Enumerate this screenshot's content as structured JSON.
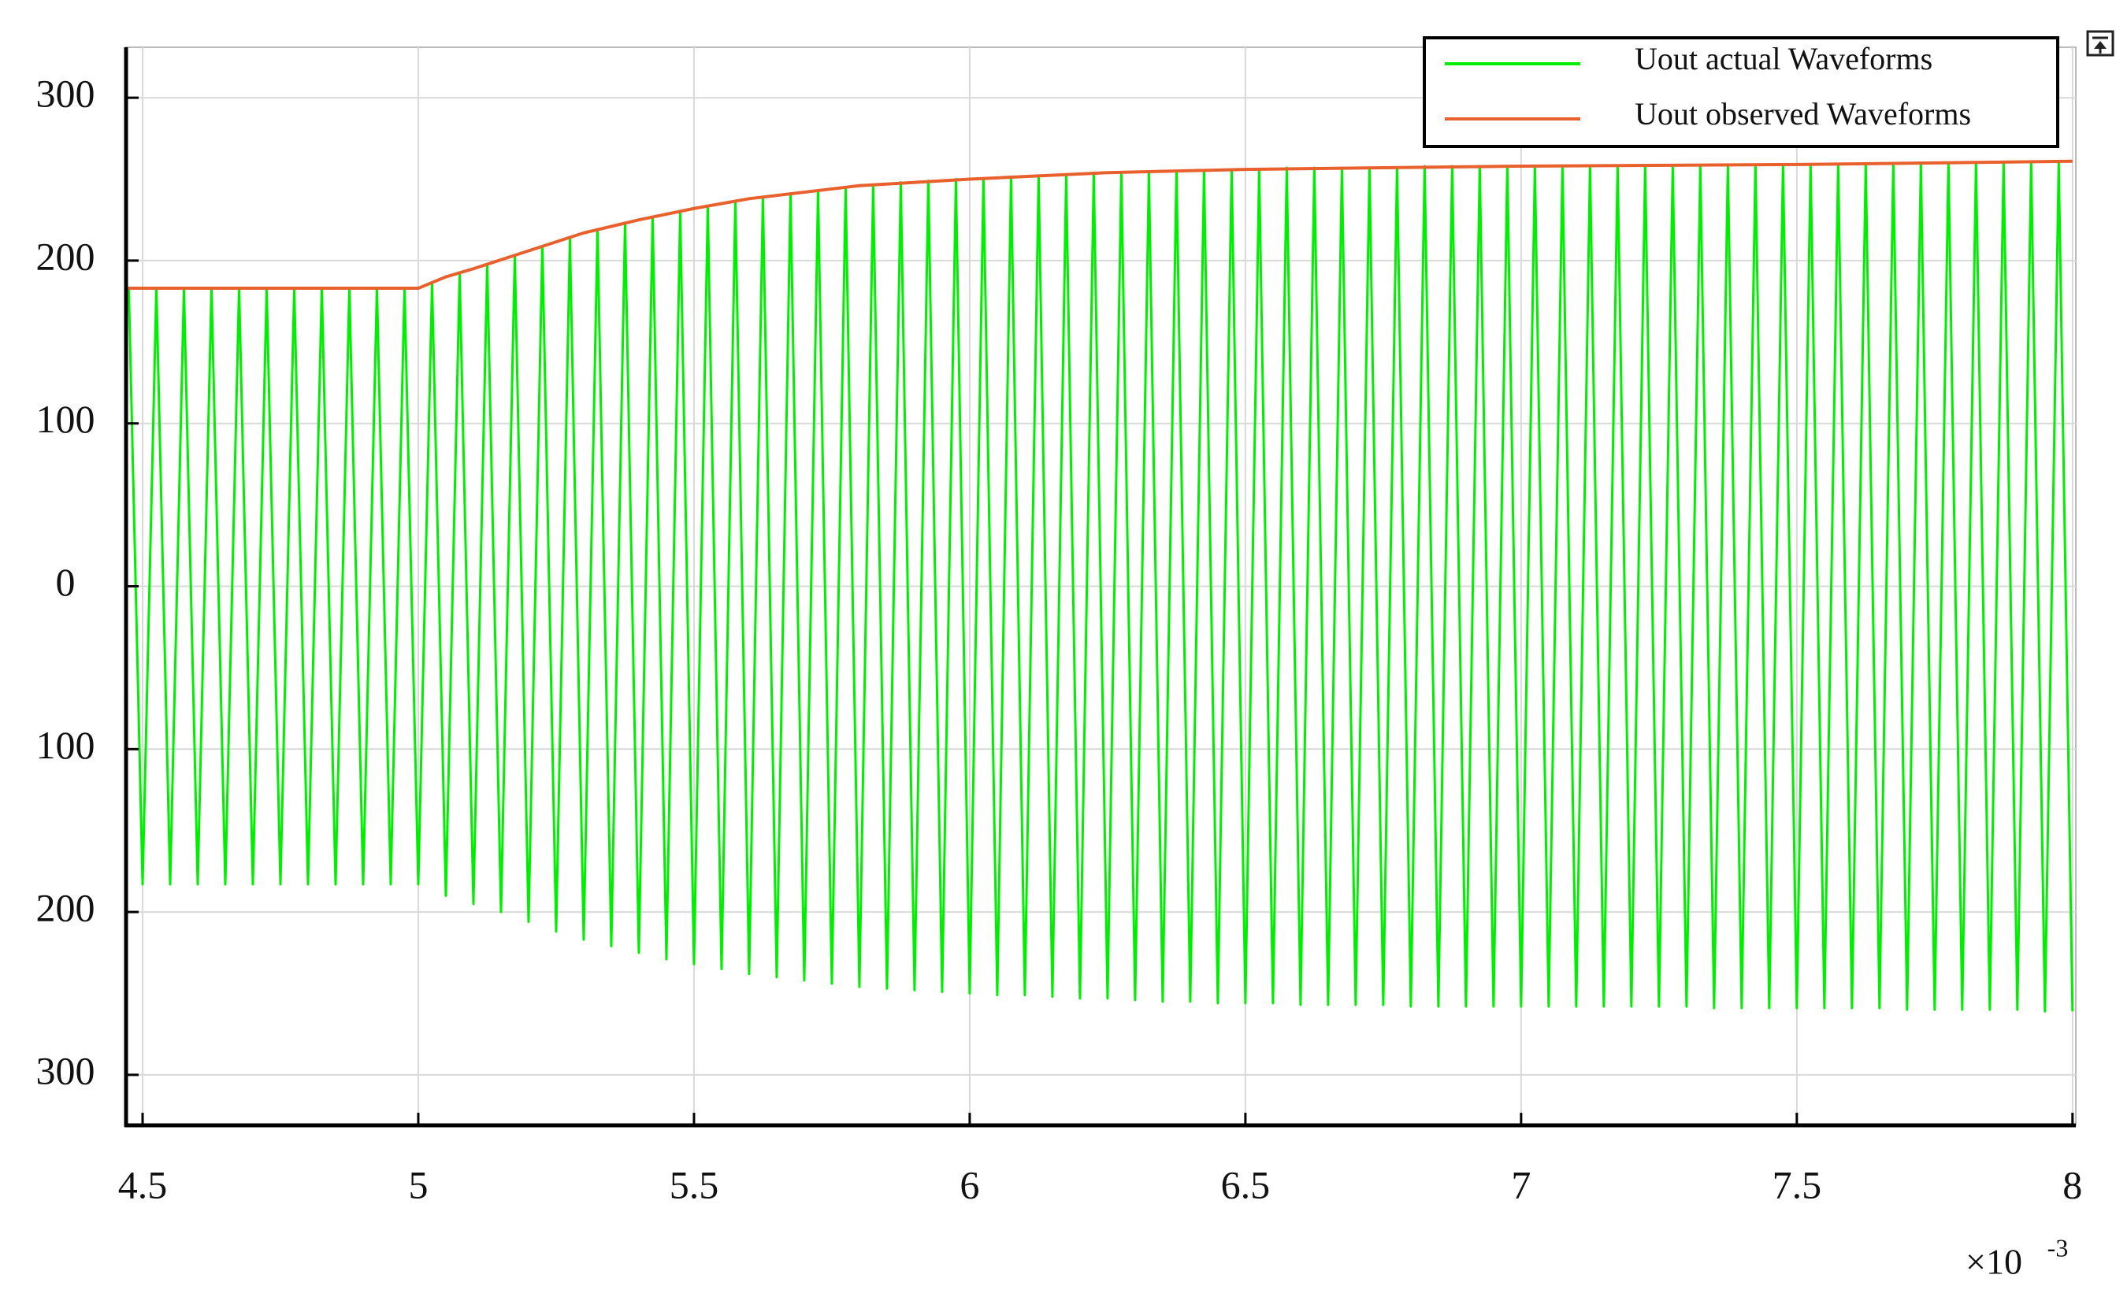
{
  "chart_data": {
    "type": "line",
    "xlim": [
      4.47,
      8.006
    ],
    "xticks": [
      4.5,
      5,
      5.5,
      6,
      6.5,
      7,
      7.5,
      8
    ],
    "ylim": [
      -331,
      331
    ],
    "yticks": [
      300,
      200,
      100,
      0,
      {
        "value": -100,
        "label": "100"
      },
      {
        "value": -200,
        "label": "200"
      },
      {
        "value": -300,
        "label": "300"
      }
    ],
    "x_multiplier": "×10",
    "x_exponent": "-3",
    "grid": true,
    "legend": "upper right",
    "series": [
      {
        "name": "Uout actual Waveforms",
        "color": "#00ee00",
        "x": [
          4.475,
          4.5,
          4.525,
          4.55,
          4.575,
          4.6,
          4.625,
          4.65,
          4.675,
          4.7,
          4.725,
          4.75,
          4.775,
          4.8,
          4.825,
          4.85,
          4.875,
          4.9,
          4.925,
          4.95,
          4.975,
          5,
          5.025,
          5.05,
          5.075,
          5.1,
          5.125,
          5.15,
          5.175,
          5.2,
          5.225,
          5.25,
          5.275,
          5.3,
          5.325,
          5.35,
          5.375,
          5.4,
          5.425,
          5.45,
          5.475,
          5.5,
          5.525,
          5.55,
          5.575,
          5.6,
          5.625,
          5.65,
          5.675,
          5.7,
          5.725,
          5.75,
          5.775,
          5.8,
          5.825,
          5.85,
          5.875,
          5.9,
          5.925,
          5.95,
          5.975,
          6,
          6.025,
          6.05,
          6.075,
          6.1,
          6.125,
          6.15,
          6.175,
          6.2,
          6.225,
          6.25,
          6.275,
          6.3,
          6.325,
          6.35,
          6.375,
          6.4,
          6.425,
          6.45,
          6.475,
          6.5,
          6.525,
          6.55,
          6.575,
          6.6,
          6.625,
          6.65,
          6.675,
          6.7,
          6.725,
          6.75,
          6.775,
          6.8,
          6.825,
          6.85,
          6.875,
          6.9,
          6.925,
          6.95,
          6.975,
          7,
          7.025,
          7.05,
          7.075,
          7.1,
          7.125,
          7.15,
          7.175,
          7.2,
          7.225,
          7.25,
          7.275,
          7.3,
          7.325,
          7.35,
          7.375,
          7.4,
          7.425,
          7.45,
          7.475,
          7.5,
          7.525,
          7.55,
          7.575,
          7.6,
          7.625,
          7.65,
          7.675,
          7.7,
          7.725,
          7.75,
          7.775,
          7.8,
          7.825,
          7.85,
          7.875,
          7.9,
          7.925,
          7.95,
          7.975,
          8
        ],
        "values": [
          183,
          -183,
          183,
          -183,
          183,
          -183,
          183,
          -183,
          183,
          -183,
          183,
          -183,
          183,
          -183,
          183,
          -183,
          183,
          -183,
          183,
          -183,
          183,
          -183,
          186,
          -190,
          192,
          -195,
          198,
          -200,
          203,
          -206,
          209,
          -212,
          214,
          -217,
          219,
          -221,
          223,
          -225,
          227,
          -229,
          230,
          -232,
          233,
          -235,
          236,
          -238,
          239,
          -240,
          241,
          -242,
          243,
          -244,
          245,
          -246,
          246,
          -247,
          248,
          -248,
          249,
          -249,
          250,
          -250,
          250,
          -251,
          251,
          -251,
          252,
          -252,
          252,
          -253,
          253,
          -253,
          254,
          -254,
          254,
          -255,
          255,
          -255,
          255,
          -256,
          256,
          -256,
          256,
          -256,
          257,
          -257,
          257,
          -257,
          257,
          -257,
          257,
          -257,
          257,
          -258,
          258,
          -258,
          258,
          -258,
          258,
          -258,
          258,
          -258,
          258,
          -258,
          258,
          -258,
          258,
          -258,
          258,
          -258,
          258,
          -258,
          258,
          -258,
          258,
          -259,
          259,
          -259,
          259,
          -259,
          259,
          -259,
          259,
          -259,
          259,
          -259,
          259,
          -259,
          259,
          -260,
          260,
          -260,
          260,
          -260,
          260,
          -260,
          260,
          -260,
          260,
          -261,
          260,
          -261
        ]
      },
      {
        "name": "Uout observed Waveforms",
        "color": "#e8602c",
        "x": [
          4.47,
          5,
          5.05,
          5.1,
          5.2,
          5.3,
          5.4,
          5.5,
          5.6,
          5.7,
          5.8,
          5.9,
          6,
          6.25,
          6.5,
          6.75,
          7,
          7.5,
          8
        ],
        "values": [
          183,
          183,
          190,
          195,
          206,
          217,
          225,
          232,
          238,
          242,
          246,
          248,
          250,
          254,
          256,
          257,
          258,
          259,
          261
        ]
      }
    ]
  }
}
